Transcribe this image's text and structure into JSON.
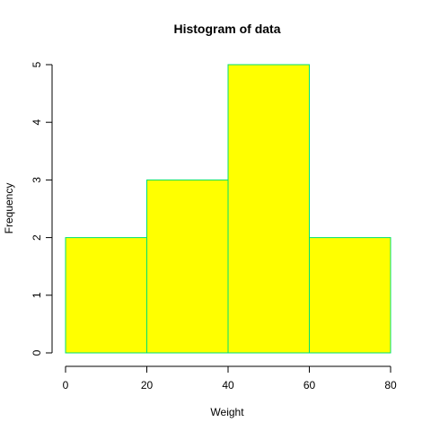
{
  "chart_data": {
    "type": "bar",
    "title": "Histogram of data",
    "xlabel": "Weight",
    "ylabel": "Frequency",
    "bins": [
      {
        "start": 0,
        "end": 20,
        "count": 2
      },
      {
        "start": 20,
        "end": 40,
        "count": 3
      },
      {
        "start": 40,
        "end": 60,
        "count": 5
      },
      {
        "start": 60,
        "end": 80,
        "count": 2
      }
    ],
    "xlim": [
      0,
      80
    ],
    "ylim": [
      0,
      5
    ],
    "x_ticks": [
      0,
      20,
      40,
      60,
      80
    ],
    "y_ticks": [
      0,
      1,
      2,
      3,
      4,
      5
    ],
    "bar_fill_color": "#ffff00",
    "bar_border_color": "#00e070",
    "grid": false
  }
}
